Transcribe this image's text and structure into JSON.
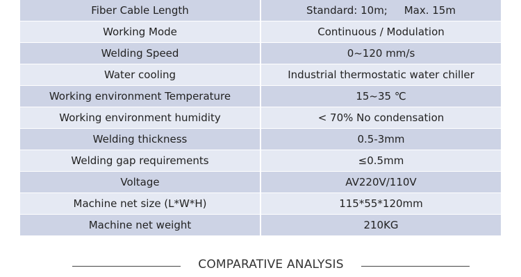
{
  "specs": [
    {
      "label": "Fiber Cable Length",
      "value": "Standard: 10m;     Max. 15m"
    },
    {
      "label": "Working Mode",
      "value": "Continuous / Modulation"
    },
    {
      "label": "Welding Speed",
      "value": "0~120 mm/s"
    },
    {
      "label": "Water cooling",
      "value": "Industrial thermostatic water chiller"
    },
    {
      "label": "Working environment Temperature",
      "value": "15~35 ℃"
    },
    {
      "label": "Working environment humidity",
      "value": "< 70% No condensation"
    },
    {
      "label": "Welding thickness",
      "value": "0.5-3mm"
    },
    {
      "label": "Welding gap requirements",
      "value": "≤0.5mm"
    },
    {
      "label": "Voltage",
      "value": "AV220V/110V"
    },
    {
      "label": "Machine net size (L*W*H)",
      "value": "115*55*120mm"
    },
    {
      "label": "Machine net weight",
      "value": "210KG"
    }
  ],
  "section": {
    "title": "COMPARATIVE ANALYSIS"
  },
  "colors": {
    "row_dark": "#cdd3e5",
    "row_light": "#e5e9f3"
  }
}
